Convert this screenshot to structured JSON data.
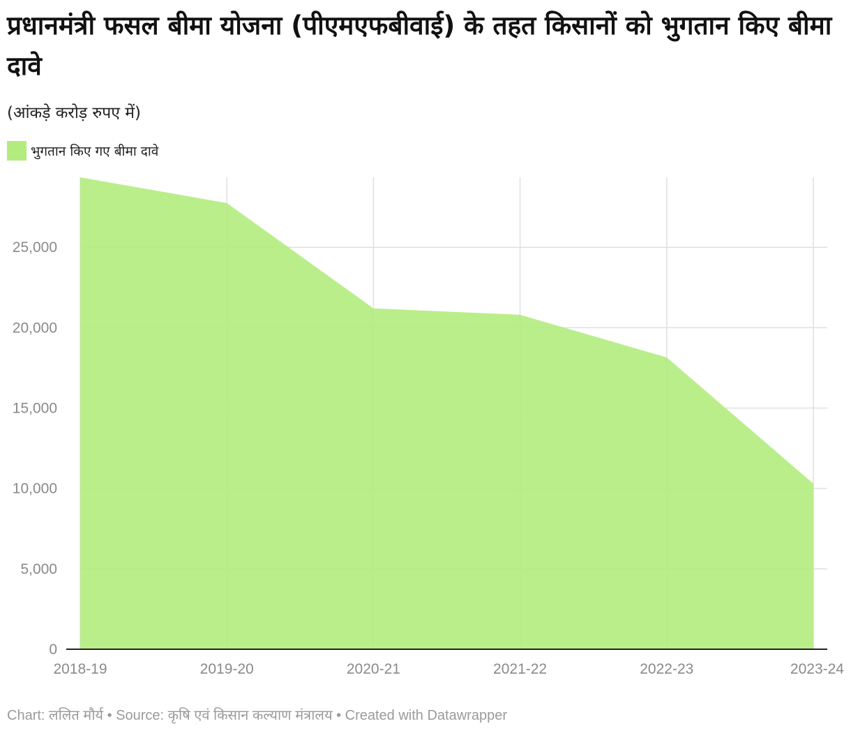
{
  "title": "प्रधानमंत्री फसल बीमा योजना (पीएमएफबीवाई) के तहत किसानों को भुगतान किए बीमा दावे",
  "subtitle": "(आंकड़े करोड़ रुपए में)",
  "legend": {
    "label": "भुगतान किए गए बीमा दावे"
  },
  "footer": "Chart: ललित मौर्य • Source: कृषि एवं किसान कल्याण मंत्रालय • Created with Datawrapper",
  "colors": {
    "area": "#b3ec7e",
    "grid": "#e0e0e0",
    "axis": "#222222",
    "tick": "#8a8a8a"
  },
  "chart_data": {
    "type": "area",
    "categories": [
      "2018-19",
      "2019-20",
      "2020-21",
      "2021-22",
      "2022-23",
      "2023-24"
    ],
    "series": [
      {
        "name": "भुगतान किए गए बीमा दावे",
        "values": [
          29350,
          27750,
          21200,
          20800,
          18150,
          10300
        ]
      }
    ],
    "ylim": [
      0,
      29350
    ],
    "yticks": [
      0,
      5000,
      10000,
      15000,
      20000,
      25000
    ],
    "ytick_labels": [
      "0",
      "5,000",
      "10,000",
      "15,000",
      "20,000",
      "25,000"
    ],
    "grid": true,
    "legend_position": "top-left"
  }
}
